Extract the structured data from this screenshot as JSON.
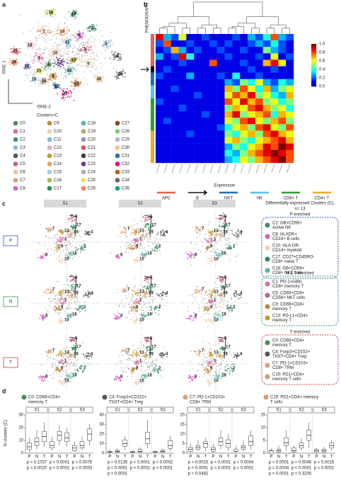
{
  "panel_a": {
    "label": "a",
    "xlabel": "tSNE-2",
    "ylabel": "tSNE-1",
    "legend_title": "Clusters=C",
    "clusters": [
      "C0",
      "C1",
      "C2",
      "C3",
      "C4",
      "C5",
      "C6",
      "C7",
      "C8",
      "C9",
      "C10",
      "C11",
      "C12",
      "C13",
      "C14",
      "C15",
      "C16",
      "C17",
      "C18",
      "C19",
      "C20",
      "C21",
      "C22",
      "C23",
      "C24",
      "C25",
      "C26",
      "C27",
      "C28",
      "C29",
      "C30",
      "C31",
      "C32",
      "C33",
      "C34",
      "C35"
    ],
    "colors": [
      "#4c8c5c",
      "#e06c9f",
      "#3f8f6f",
      "#8fb8d8",
      "#555555",
      "#c0608f",
      "#e8c8a0",
      "#d8a07a",
      "#d060c0",
      "#b88a40",
      "#f2d0b0",
      "#77bbdd",
      "#e8a8c8",
      "#c99a2e",
      "#f0a060",
      "#a0d0e0",
      "#a0c040",
      "#2e8b57",
      "#5ab4ac",
      "#c8a070",
      "#9090d0",
      "#e05050",
      "#404040",
      "#6a3d9a",
      "#b0b0b0",
      "#f0e060",
      "#ff7f50",
      "#8b4513",
      "#7fc97f",
      "#beaed4",
      "#fdc086",
      "#386cb0",
      "#f0027f",
      "#bf5b17",
      "#666666",
      "#1b9e77"
    ],
    "map_labels": [
      "16",
      "17",
      "7",
      "21",
      "12",
      "11",
      "10",
      "8",
      "14",
      "1",
      "26",
      "0",
      "23",
      "2",
      "3",
      "13",
      "6",
      "5",
      "4",
      "18",
      "20",
      "25",
      "9",
      "31",
      "19",
      "15",
      "32",
      "34",
      "30",
      "33"
    ]
  },
  "panel_b": {
    "label": "b",
    "row_title": "PHENOGRAPH",
    "xlabel": "Expression",
    "cell_types": [
      {
        "name": "APC",
        "color": "#e8604c"
      },
      {
        "name": "B",
        "color": "#111111"
      },
      {
        "name": "NKT",
        "color": "#1f6fb4"
      },
      {
        "name": "NK",
        "color": "#4fc3f7"
      },
      {
        "name": "CD8+ T",
        "color": "#2ca02c"
      },
      {
        "name": "CD4+ T",
        "color": "#f5a623"
      }
    ],
    "row_types": [
      0,
      0,
      0,
      0,
      0,
      1,
      2,
      2,
      3,
      3,
      4,
      4,
      4,
      4,
      4,
      5,
      5,
      5,
      5,
      5
    ],
    "clim": [
      0,
      1
    ],
    "colorbar_ticks": [
      {
        "value": 1,
        "label": "1.0"
      },
      {
        "value": 0.8,
        "label": "0.8"
      },
      {
        "value": 0.6,
        "label": "0.6"
      },
      {
        "value": 0.4,
        "label": "0.4"
      },
      {
        "value": 0.2,
        "label": "0.2"
      },
      {
        "value": 0,
        "label": "0.0"
      }
    ],
    "matrix": [
      [
        0.9,
        0.3,
        0.2,
        0.6,
        0.1,
        0.1,
        0.2,
        0.1,
        0.1,
        0.1,
        0.2,
        0.1,
        0.3,
        0.2,
        0.4,
        0.8,
        0.3,
        0.2
      ],
      [
        0.2,
        0.8,
        0.1,
        0.1,
        0.2,
        0.1,
        0.1,
        0.2,
        0.1,
        0.2,
        0.1,
        0.1,
        0.2,
        0.3,
        0.2,
        0.4,
        0.2,
        0.1
      ],
      [
        0.1,
        0.2,
        0.7,
        0.3,
        0.1,
        0.2,
        0.1,
        0.1,
        0.2,
        0.1,
        0.1,
        0.2,
        0.1,
        0.1,
        0.5,
        0.3,
        0.2,
        0.1
      ],
      [
        0.3,
        0.1,
        0.2,
        0.9,
        0.4,
        0.1,
        0.1,
        0.1,
        0.1,
        0.2,
        0.1,
        0.1,
        0.1,
        0.2,
        0.1,
        0.6,
        0.1,
        0.2
      ],
      [
        0.1,
        0.1,
        0.1,
        0.2,
        0.1,
        0.1,
        0.1,
        0.8,
        0.1,
        0.1,
        0.1,
        0.2,
        0.1,
        0.1,
        0.7,
        0.9,
        0.6,
        0.1
      ],
      [
        0.1,
        0.2,
        0.1,
        0.1,
        0.1,
        0.1,
        0.1,
        0.1,
        0.1,
        0.1,
        0.1,
        0.1,
        0.2,
        0.1,
        0.1,
        0.2,
        0.1,
        0.1
      ],
      [
        0.2,
        0.1,
        0.1,
        0.1,
        0.3,
        0.1,
        0.1,
        0.1,
        0.2,
        0.1,
        0.4,
        0.1,
        0.1,
        0.2,
        0.1,
        0.1,
        0.1,
        0.1
      ],
      [
        0.1,
        0.1,
        0.1,
        0.1,
        0.1,
        0.1,
        0.1,
        0.1,
        0.1,
        0.3,
        0.2,
        0.5,
        0.4,
        0.6,
        0.3,
        0.2,
        0.4,
        0.3
      ],
      [
        0.1,
        0.1,
        0.2,
        0.1,
        0.1,
        0.1,
        0.1,
        0.1,
        0.1,
        0.7,
        0.5,
        0.8,
        0.6,
        0.4,
        0.7,
        0.3,
        0.5,
        0.6
      ],
      [
        0.1,
        0.1,
        0.1,
        0.1,
        0.1,
        0.2,
        0.1,
        0.1,
        0.1,
        0.6,
        0.8,
        0.7,
        0.9,
        0.5,
        0.6,
        0.4,
        0.3,
        0.7
      ],
      [
        0.2,
        0.1,
        0.1,
        0.1,
        0.1,
        0.1,
        0.1,
        0.1,
        0.1,
        0.8,
        0.6,
        0.9,
        0.7,
        0.8,
        0.5,
        0.6,
        0.4,
        0.5
      ],
      [
        0.1,
        0.1,
        0.1,
        0.2,
        0.1,
        0.1,
        0.1,
        0.1,
        0.1,
        0.5,
        0.7,
        0.6,
        0.8,
        0.9,
        0.7,
        0.5,
        0.6,
        0.4
      ],
      [
        0.1,
        0.1,
        0.1,
        0.1,
        0.1,
        0.1,
        0.2,
        0.1,
        0.1,
        0.7,
        0.9,
        0.5,
        0.6,
        0.7,
        0.8,
        0.4,
        0.7,
        0.6
      ],
      [
        0.1,
        0.2,
        0.1,
        0.1,
        0.1,
        0.1,
        0.1,
        0.1,
        0.1,
        0.6,
        0.5,
        0.8,
        0.9,
        0.6,
        0.5,
        0.7,
        0.8,
        0.5
      ],
      [
        0.1,
        0.1,
        0.1,
        0.1,
        0.1,
        0.1,
        0.1,
        0.1,
        0.2,
        0.4,
        0.6,
        0.7,
        0.5,
        0.8,
        0.9,
        0.6,
        0.5,
        0.8
      ],
      [
        0.1,
        0.1,
        0.1,
        0.1,
        0.2,
        0.1,
        0.1,
        0.1,
        0.1,
        0.5,
        0.4,
        0.6,
        0.7,
        0.5,
        0.8,
        0.9,
        0.7,
        0.6
      ],
      [
        0.1,
        0.1,
        0.1,
        0.1,
        0.1,
        0.1,
        0.1,
        0.1,
        0.1,
        0.6,
        0.7,
        0.5,
        0.4,
        0.6,
        0.7,
        0.8,
        0.9,
        0.7
      ],
      [
        0.1,
        0.1,
        0.1,
        0.1,
        0.1,
        0.1,
        0.1,
        0.1,
        0.1,
        0.3,
        0.5,
        0.4,
        0.6,
        0.7,
        0.9,
        0.8,
        1.0,
        0.9
      ],
      [
        0.1,
        0.1,
        0.1,
        0.1,
        0.1,
        0.1,
        0.1,
        0.1,
        0.1,
        0.4,
        0.3,
        0.5,
        0.7,
        0.8,
        0.9,
        1.0,
        0.9,
        0.8
      ],
      [
        0.1,
        0.1,
        0.1,
        0.1,
        0.1,
        0.1,
        0.1,
        0.1,
        0.1,
        0.3,
        0.4,
        0.6,
        0.5,
        0.7,
        0.8,
        0.9,
        1.0,
        0.8
      ]
    ]
  },
  "panel_c": {
    "label": "c",
    "columns": [
      "S1",
      "S2",
      "S3"
    ],
    "rows": [
      "P",
      "N",
      "T"
    ],
    "row_colors": [
      "#3355bb",
      "#2e9b4e",
      "#d04040"
    ],
    "plot_labels": [
      "5",
      "17",
      "7",
      "13",
      "19",
      "4",
      "1",
      "9",
      "2",
      "8",
      "10",
      "18"
    ],
    "side_title": "Differentially expressed Clusters (C),",
    "side_n": "n= 13",
    "groups": [
      {
        "title": "P enriched",
        "color": "#3355bb",
        "items": [
          {
            "text": [
              "C2: GB+CD56+",
              "Active NK"
            ],
            "color": "#3f8f6f"
          },
          {
            "text": [
              "C8: HLADR+",
              "CD19+ B cells"
            ],
            "color": "#d060c0"
          },
          {
            "text": [
              "C10: HLA-DR-",
              "CD14+ myeloid"
            ],
            "color": "#f2d0b0"
          },
          {
            "text": [
              "C17: CD27+CD45RO-",
              "CD8+ naive T"
            ],
            "color": "#2e8b57"
          },
          {
            "text": [
              "C18: GB+CD56+",
              "CD8+ NKT cells"
            ],
            "color": "#5ab4ac"
          }
        ]
      },
      {
        "title": "N & T enriched",
        "color": "#2e9b4e",
        "items": [
          {
            "text": [
              "C1: PD-1+GBlo",
              "CD8+ memory T"
            ],
            "color": "#e06c9f"
          },
          {
            "text": [
              "C5: CD69+CD8+",
              "CD56+ NKT cells"
            ],
            "color": "#c0608f"
          },
          {
            "text": [
              "C9: CD69+CD8+",
              "memory T"
            ],
            "color": "#b88a40"
          },
          {
            "text": [
              "C13: PD-L1+CD4+",
              "memory T"
            ],
            "color": "#c99a2e"
          }
        ]
      },
      {
        "title": "T enriched",
        "color": "#d04040",
        "items": [
          {
            "text": [
              "C0: CD69+CD4+",
              "memory T"
            ],
            "color": "#4c8c5c"
          },
          {
            "text": [
              "C4: Foxp3+CD152+",
              "TIGIT+CD4+ Treg"
            ],
            "color": "#555555"
          },
          {
            "text": [
              "C7: PD-1+CD103+",
              "CD8+ TRM"
            ],
            "color": "#d8a07a"
          },
          {
            "text": [
              "C19: PD1+CD4+",
              "memory T cells"
            ],
            "color": "#c8a070"
          }
        ]
      }
    ]
  },
  "panel_d": {
    "label": "d",
    "ylabel": "% clusters (C)",
    "samples": [
      "S1",
      "S2",
      "S3"
    ],
    "tissues": [
      "P",
      "N",
      "T"
    ],
    "plots": [
      {
        "title": [
          "C0: CD69+CD4+",
          "memory T"
        ],
        "color": "#4c8c5c",
        "ylim": [
          0,
          30
        ],
        "yticks": [
          0,
          10,
          20,
          30
        ],
        "boxes": [
          [
            1,
            3,
            5,
            8,
            12
          ],
          [
            3,
            6,
            9,
            12,
            18
          ],
          [
            5,
            9,
            13,
            17,
            24
          ],
          [
            2,
            4,
            6,
            9,
            13
          ],
          [
            6,
            10,
            14,
            17,
            22
          ],
          [
            5,
            9,
            12,
            16,
            20
          ],
          [
            1,
            2,
            4,
            6,
            9
          ],
          [
            2,
            4,
            6,
            9,
            13
          ],
          [
            6,
            10,
            15,
            19,
            23
          ]
        ],
        "pvalues": [
          [
            "p = 0.1037",
            "p < 0.0001",
            "p = 0.0075"
          ],
          [
            "p = 0.0020",
            "p < 0.0001",
            "p = 0.0003"
          ]
        ]
      },
      {
        "title": [
          "C4: Foxp3+CD152+",
          "TIGIT+CD4+ Treg"
        ],
        "color": "#555555",
        "ylim": [
          0,
          40
        ],
        "yticks": [
          0,
          10,
          20,
          30,
          40
        ],
        "boxes": [
          [
            0,
            1,
            1,
            2,
            4
          ],
          [
            0,
            1,
            2,
            3,
            5
          ],
          [
            3,
            7,
            10,
            14,
            18
          ],
          [
            0,
            1,
            1,
            2,
            3
          ],
          [
            0,
            1,
            2,
            4,
            6
          ],
          [
            5,
            10,
            15,
            22,
            35
          ],
          [
            0,
            1,
            1,
            2,
            3
          ],
          [
            0,
            1,
            2,
            3,
            5
          ],
          [
            2,
            5,
            8,
            13,
            18
          ]
        ],
        "pvalues": [
          [
            "p = 0.0135",
            "p < 0.0001",
            "p = 0.0002"
          ],
          [
            "p = 0.0001",
            "p < 0.0001",
            "p < 0.0001"
          ],
          [
            "p = 0.0001"
          ]
        ]
      },
      {
        "title": [
          "C7: PD-1+CD103+",
          "CD8+ TRM"
        ],
        "color": "#d8a07a",
        "ylim": [
          0,
          20
        ],
        "yticks": [
          0,
          5,
          10,
          15,
          20
        ],
        "boxes": [
          [
            0,
            1,
            2,
            3,
            5
          ],
          [
            1,
            2,
            3,
            4,
            7
          ],
          [
            1,
            3,
            5,
            6,
            8
          ],
          [
            0,
            1,
            2,
            3,
            5
          ],
          [
            2,
            4,
            6,
            8,
            12
          ],
          [
            1,
            3,
            5,
            7,
            10
          ],
          [
            0,
            1,
            1,
            2,
            4
          ],
          [
            1,
            2,
            3,
            4,
            7
          ],
          [
            2,
            4,
            6,
            9,
            12
          ]
        ],
        "pvalues": [
          [
            "p = 0.0015",
            "p < 0.0001",
            "p = 0.0004"
          ],
          [
            "p < 0.0001",
            "p = 0.0001",
            "p = 0.0001"
          ],
          [
            "p = 0.0482"
          ]
        ]
      },
      {
        "title": [
          "C19: PD1+CD4+ memory",
          "T cells"
        ],
        "color": "#c8a070",
        "ylim": [
          0,
          15
        ],
        "yticks": [
          0,
          5,
          10,
          15
        ],
        "boxes": [
          [
            0,
            0,
            1,
            1,
            2
          ],
          [
            0,
            0.5,
            1,
            1.5,
            3
          ],
          [
            1,
            3,
            4,
            6,
            9
          ],
          [
            0,
            0.5,
            1,
            2,
            3
          ],
          [
            1,
            2,
            3,
            4,
            6
          ],
          [
            2,
            5,
            7,
            9,
            12
          ],
          [
            0,
            0.5,
            1,
            1.5,
            2
          ],
          [
            0,
            0.5,
            1,
            1.5,
            2.5
          ],
          [
            1,
            2,
            3,
            4,
            5
          ]
        ],
        "pvalues": [
          [
            "p = 0.0001",
            "p = 0.0046",
            "p = 0.0015"
          ],
          [
            "p = 0.0004",
            "p < 0.0001",
            "p = 0.0001"
          ],
          [
            "p < 0.0001",
            "p = 0.3205"
          ]
        ]
      }
    ]
  }
}
